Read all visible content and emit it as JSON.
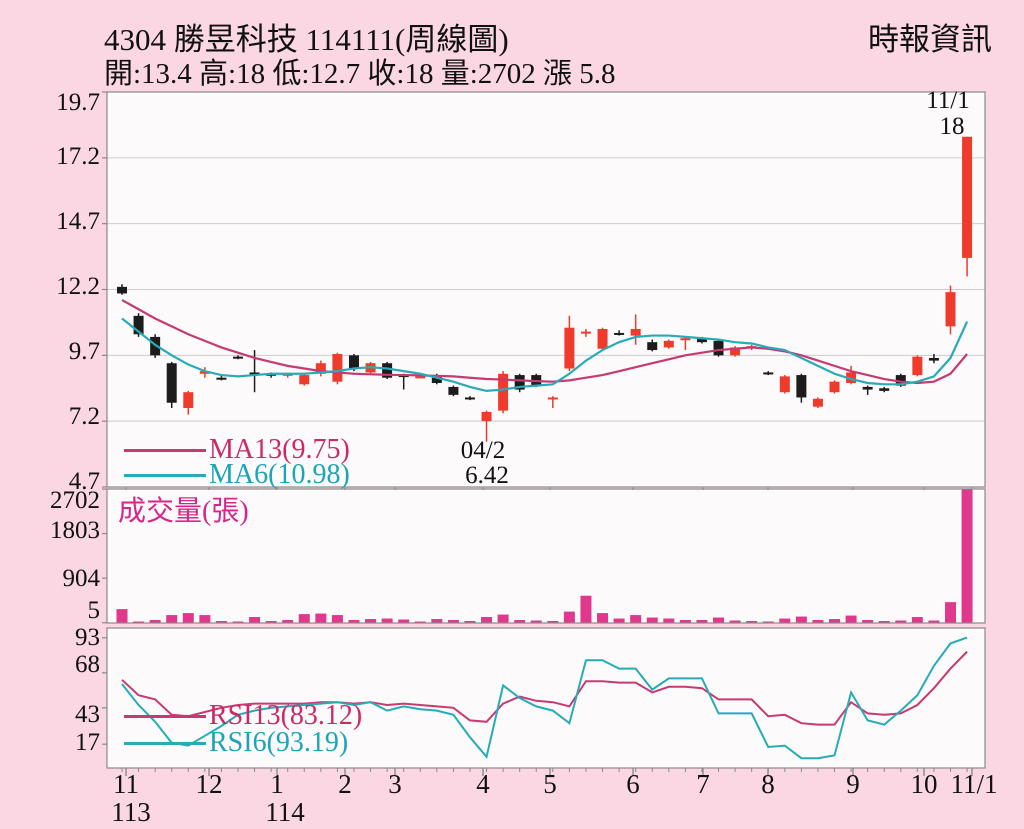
{
  "header": {
    "title": "4304  勝昱科技 114111(周線圖)",
    "source": "時報資訊",
    "summary": "開:13.4 高:18 低:12.7 收:18 量:2702 漲 5.8"
  },
  "colors": {
    "background": "#fad7e2",
    "plot_bg": "#fcfafa",
    "up": "#ee3b2b",
    "down": "#1c1c1c",
    "ma13": "#c63a72",
    "ma6": "#27abb8",
    "volume": "#e0388c",
    "axis": "#8a8a8a",
    "grid": "#cccccc",
    "text": "#111111"
  },
  "price_axis": {
    "labels": [
      "19.7",
      "17.2",
      "14.7",
      "12.2",
      "9.7",
      "7.2",
      "4.7"
    ]
  },
  "volume_axis": {
    "labels": [
      "2702",
      "1803",
      "904",
      "5"
    ]
  },
  "rsi_axis": {
    "labels": [
      "93",
      "68",
      "43",
      "17"
    ]
  },
  "x_axis": {
    "months": [
      "11",
      "12",
      "1",
      "2",
      "3",
      "4",
      "5",
      "6",
      "7",
      "8",
      "9",
      "10",
      "11/1"
    ],
    "years": [
      "113",
      "114"
    ]
  },
  "legends": {
    "ma13": "MA13(9.75)",
    "ma6": "MA6(10.98)",
    "volume": "成交量(張)",
    "rsi13": "RSI13(83.12)",
    "rsi6": "RSI6(93.19)"
  },
  "annotations": {
    "high_date": "11/1",
    "high_price": "18",
    "low_date": "04/2",
    "low_price": "6.42"
  },
  "chart_data": [
    {
      "type": "candlestick",
      "title": "4304 勝昱科技 114111(周線圖)",
      "ylim": [
        4.7,
        19.7
      ],
      "yticks": [
        19.7,
        17.2,
        14.7,
        12.2,
        9.7,
        7.2,
        4.7
      ],
      "x_months": [
        "11",
        "12",
        "1",
        "2",
        "3",
        "4",
        "5",
        "6",
        "7",
        "8",
        "9",
        "10",
        "11/1"
      ],
      "candles": [
        [
          12.3,
          12.4,
          12.0,
          12.05
        ],
        [
          11.2,
          11.3,
          10.4,
          10.5
        ],
        [
          10.4,
          10.5,
          9.6,
          9.7
        ],
        [
          9.4,
          9.45,
          7.7,
          7.9
        ],
        [
          7.7,
          8.35,
          7.45,
          8.3
        ],
        [
          9.0,
          9.25,
          8.85,
          9.1
        ],
        [
          8.85,
          8.95,
          8.75,
          8.8
        ],
        [
          9.65,
          9.7,
          9.55,
          9.6
        ],
        [
          9.05,
          9.9,
          8.3,
          8.95
        ],
        [
          9.0,
          9.05,
          8.85,
          8.95
        ],
        [
          8.95,
          9.0,
          8.85,
          9.0
        ],
        [
          8.6,
          9.0,
          8.55,
          8.95
        ],
        [
          9.0,
          9.5,
          8.9,
          9.4
        ],
        [
          8.7,
          9.8,
          8.6,
          9.75
        ],
        [
          9.7,
          9.75,
          9.1,
          9.2
        ],
        [
          9.05,
          9.45,
          9.0,
          9.4
        ],
        [
          9.4,
          9.45,
          8.8,
          8.85
        ],
        [
          8.95,
          9.0,
          8.4,
          8.9
        ],
        [
          8.9,
          8.95,
          8.85,
          8.9
        ],
        [
          8.95,
          9.0,
          8.6,
          8.65
        ],
        [
          8.5,
          8.55,
          8.15,
          8.2
        ],
        [
          8.1,
          8.15,
          8.0,
          8.05
        ],
        [
          7.2,
          7.6,
          6.42,
          7.55
        ],
        [
          7.6,
          9.1,
          7.5,
          9.0
        ],
        [
          8.95,
          9.0,
          8.3,
          8.4
        ],
        [
          8.95,
          9.0,
          8.5,
          8.55
        ],
        [
          8.05,
          8.15,
          7.7,
          8.1
        ],
        [
          9.2,
          11.2,
          9.1,
          10.75
        ],
        [
          10.55,
          10.7,
          10.4,
          10.6
        ],
        [
          9.95,
          10.75,
          9.9,
          10.7
        ],
        [
          10.55,
          10.65,
          10.45,
          10.5
        ],
        [
          10.45,
          11.25,
          10.1,
          10.7
        ],
        [
          10.2,
          10.3,
          9.85,
          9.9
        ],
        [
          10.0,
          10.3,
          9.95,
          10.25
        ],
        [
          10.3,
          10.4,
          9.9,
          10.35
        ],
        [
          10.35,
          10.4,
          10.15,
          10.2
        ],
        [
          10.25,
          10.3,
          9.65,
          9.7
        ],
        [
          9.7,
          10.05,
          9.65,
          10.0
        ],
        [
          10.0,
          10.1,
          9.9,
          10.05
        ],
        [
          9.05,
          9.1,
          8.95,
          9.0
        ],
        [
          8.3,
          8.95,
          8.25,
          8.9
        ],
        [
          8.95,
          9.0,
          7.9,
          8.1
        ],
        [
          7.75,
          8.1,
          7.7,
          8.05
        ],
        [
          8.3,
          8.75,
          8.25,
          8.7
        ],
        [
          8.65,
          9.3,
          8.6,
          9.05
        ],
        [
          8.5,
          8.55,
          8.2,
          8.4
        ],
        [
          8.45,
          8.5,
          8.3,
          8.35
        ],
        [
          8.95,
          9.0,
          8.5,
          8.55
        ],
        [
          8.95,
          9.7,
          8.9,
          9.65
        ],
        [
          9.6,
          9.75,
          9.4,
          9.5
        ],
        [
          10.8,
          12.35,
          10.5,
          12.1
        ],
        [
          13.4,
          18.0,
          12.7,
          18.0
        ]
      ],
      "series": [
        {
          "name": "MA13(9.75)",
          "values": [
            11.8,
            11.45,
            11.1,
            10.8,
            10.5,
            10.25,
            10.0,
            9.8,
            9.6,
            9.45,
            9.3,
            9.2,
            9.1,
            9.05,
            9.0,
            8.98,
            8.96,
            8.95,
            8.94,
            8.92,
            8.9,
            8.85,
            8.8,
            8.78,
            8.75,
            8.72,
            8.7,
            8.75,
            8.85,
            8.95,
            9.1,
            9.25,
            9.4,
            9.55,
            9.7,
            9.8,
            9.9,
            9.95,
            10.0,
            9.95,
            9.85,
            9.7,
            9.5,
            9.3,
            9.1,
            8.95,
            8.8,
            8.7,
            8.65,
            8.7,
            9.0,
            9.75
          ]
        },
        {
          "name": "MA6(10.98)",
          "values": [
            11.1,
            10.6,
            10.1,
            9.7,
            9.35,
            9.1,
            8.95,
            8.9,
            8.95,
            9.0,
            9.0,
            9.0,
            9.05,
            9.1,
            9.2,
            9.25,
            9.2,
            9.1,
            9.0,
            8.85,
            8.7,
            8.5,
            8.35,
            8.4,
            8.5,
            8.55,
            8.6,
            9.0,
            9.5,
            9.9,
            10.2,
            10.4,
            10.45,
            10.45,
            10.4,
            10.35,
            10.3,
            10.2,
            10.15,
            10.0,
            9.9,
            9.6,
            9.3,
            9.0,
            8.8,
            8.65,
            8.6,
            8.6,
            8.7,
            8.9,
            9.6,
            10.98
          ]
        }
      ],
      "annotations": [
        {
          "text": "11/1 18",
          "week_index": 51,
          "value": 18
        },
        {
          "text": "04/2 6.42",
          "week_index": 22,
          "value": 6.42
        }
      ]
    },
    {
      "type": "bar",
      "name": "成交量(張)",
      "ylim": [
        0,
        2702
      ],
      "yticks": [
        2702,
        1803,
        904,
        5
      ],
      "values": [
        280,
        30,
        60,
        160,
        200,
        160,
        40,
        30,
        120,
        40,
        60,
        180,
        190,
        160,
        60,
        80,
        90,
        70,
        30,
        80,
        60,
        40,
        120,
        170,
        60,
        50,
        40,
        230,
        550,
        200,
        90,
        160,
        110,
        90,
        60,
        60,
        110,
        50,
        40,
        30,
        90,
        130,
        60,
        80,
        150,
        60,
        40,
        50,
        120,
        50,
        420,
        2702
      ]
    },
    {
      "type": "line",
      "ylim": [
        0,
        100
      ],
      "yticks": [
        93,
        68,
        43,
        17
      ],
      "series": [
        {
          "name": "RSI13(83.12)",
          "values": [
            63,
            52,
            49,
            38,
            37,
            40,
            43,
            45,
            46,
            46,
            46,
            46,
            47,
            47,
            46,
            47,
            45,
            46,
            45,
            44,
            43,
            34,
            33,
            46,
            51,
            48,
            47,
            44,
            62,
            62,
            61,
            61,
            54,
            58,
            58,
            57,
            49,
            49,
            49,
            37,
            38,
            32,
            31,
            31,
            47,
            39,
            38,
            39,
            45,
            57,
            71,
            83.12
          ]
        },
        {
          "name": "RSI6(93.19)",
          "values": [
            60,
            45,
            33,
            18,
            16,
            23,
            30,
            38,
            41,
            43,
            44,
            45,
            46,
            47,
            45,
            47,
            41,
            44,
            42,
            41,
            38,
            22,
            8,
            59,
            50,
            44,
            41,
            32,
            77,
            77,
            71,
            71,
            56,
            64,
            64,
            64,
            39,
            39,
            39,
            15,
            16,
            7,
            7,
            9,
            54,
            34,
            31,
            41,
            52,
            73,
            89,
            93.19
          ]
        }
      ]
    }
  ]
}
